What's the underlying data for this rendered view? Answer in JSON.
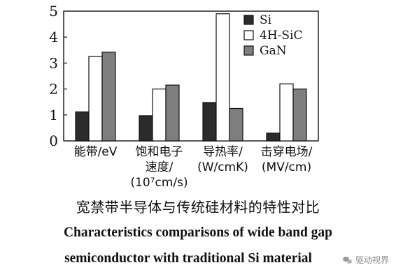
{
  "chart_data": {
    "type": "bar",
    "categories": [
      [
        "能带/eV"
      ],
      [
        "饱和电子",
        "速度/",
        "(10⁷cm/s)"
      ],
      [
        "导热率/",
        "(W/cmK)"
      ],
      [
        "击穿电场/",
        "(MV/cm)"
      ]
    ],
    "series": [
      {
        "name": "Si",
        "values": [
          1.12,
          0.97,
          1.48,
          0.3
        ],
        "color": "#2b2b2b"
      },
      {
        "name": "4H-SiC",
        "values": [
          3.26,
          2.0,
          4.9,
          2.2
        ],
        "color": "#ffffff"
      },
      {
        "name": "GaN",
        "values": [
          3.42,
          2.15,
          1.25,
          2.0
        ],
        "color": "#7f7f7f"
      }
    ],
    "yticks": [
      0,
      1,
      2,
      3,
      4,
      5
    ],
    "ylim": [
      0,
      5
    ],
    "legend_position": "top-right",
    "grid": false
  },
  "caption": {
    "chinese": "宽禁带半导体与传统硅材料的特性对比",
    "english_line1": "Characteristics comparisons of wide band gap",
    "english_line2": "semiconductor with traditional Si material"
  },
  "watermark": {
    "text": "驱动视界",
    "icon": "wechat-icon"
  }
}
